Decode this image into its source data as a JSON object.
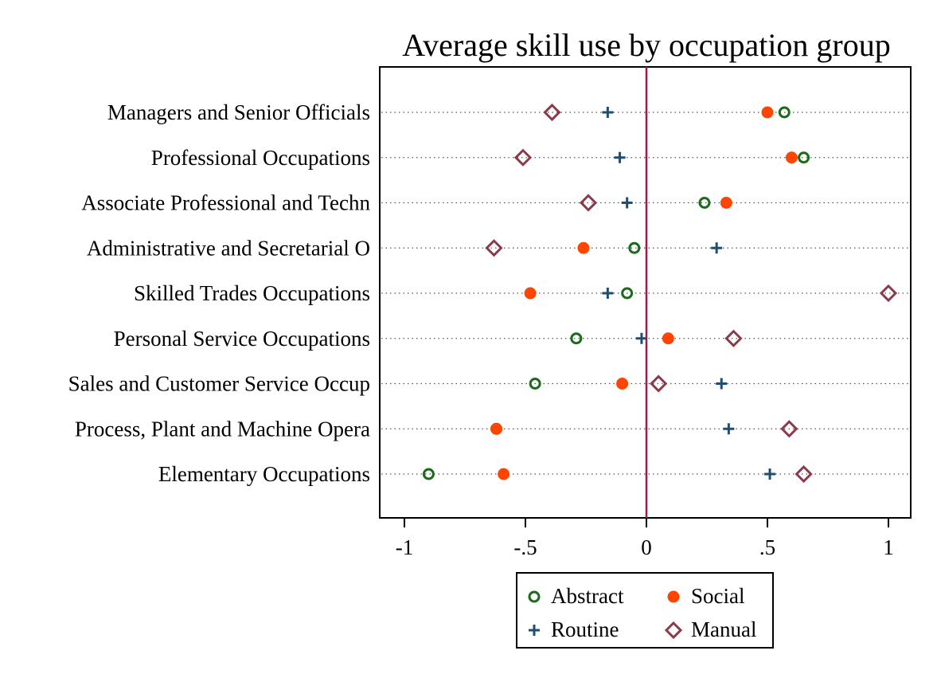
{
  "chart_data": {
    "type": "scatter",
    "title": "Average skill use by occupation group",
    "categories": [
      "Managers and Senior Officials",
      "Professional Occupations",
      "Associate Professional and Techn",
      "Administrative and Secretarial O",
      "Skilled Trades Occupations",
      "Personal Service Occupations",
      "Sales and Customer Service Occup",
      "Process, Plant and Machine Opera",
      "Elementary Occupations"
    ],
    "series": [
      {
        "name": "Abstract",
        "marker": "hollow-circle",
        "color": "#1a6b1a",
        "values": [
          0.57,
          0.65,
          0.24,
          -0.05,
          -0.08,
          -0.29,
          -0.46,
          -0.62,
          -0.9
        ]
      },
      {
        "name": "Social",
        "marker": "filled-circle",
        "color": "#ff4500",
        "values": [
          0.5,
          0.6,
          0.33,
          -0.26,
          -0.48,
          0.09,
          -0.1,
          -0.62,
          -0.59
        ]
      },
      {
        "name": "Routine",
        "marker": "plus",
        "color": "#1f4e6e",
        "values": [
          -0.16,
          -0.11,
          -0.08,
          0.29,
          -0.16,
          -0.02,
          0.31,
          0.34,
          0.51
        ]
      },
      {
        "name": "Manual",
        "marker": "hollow-diamond",
        "color": "#8b3a4a",
        "values": [
          -0.39,
          -0.51,
          -0.24,
          -0.63,
          1.0,
          0.36,
          0.05,
          0.59,
          0.65
        ]
      }
    ],
    "xticks": [
      -1,
      -0.5,
      0,
      0.5,
      1
    ],
    "xtick_labels": [
      "-1",
      "-.5",
      "0",
      ".5",
      "1"
    ],
    "xlim": [
      -1.1,
      1.1
    ],
    "reference_line": {
      "x": 0,
      "color": "#b0124a"
    },
    "grid": "dotted horizontal",
    "legend": {
      "position": "bottom",
      "columns": 2,
      "order": [
        "Abstract",
        "Social",
        "Routine",
        "Manual"
      ]
    }
  }
}
